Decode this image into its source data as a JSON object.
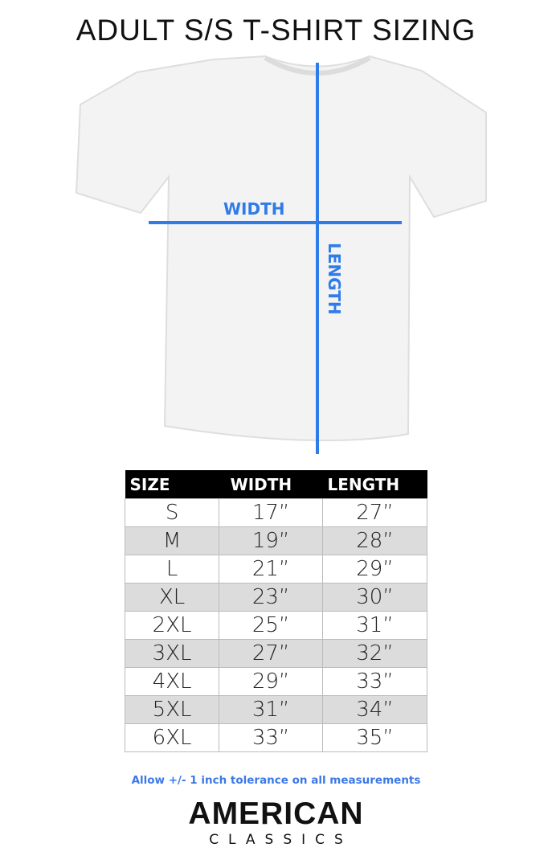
{
  "title": "ADULT S/S T-SHIRT SIZING",
  "diagram": {
    "width_label": "WIDTH",
    "length_label": "LENGTH",
    "accent_color": "#2f7be8"
  },
  "table": {
    "headers": [
      "SIZE",
      "WIDTH",
      "LENGTH"
    ],
    "rows": [
      [
        "S",
        "17”",
        "27”"
      ],
      [
        "M",
        "19”",
        "28”"
      ],
      [
        "L",
        "21”",
        "29”"
      ],
      [
        "XL",
        "23”",
        "30”"
      ],
      [
        "2XL",
        "25”",
        "31”"
      ],
      [
        "3XL",
        "27”",
        "32”"
      ],
      [
        "4XL",
        "29”",
        "33”"
      ],
      [
        "5XL",
        "31”",
        "34”"
      ],
      [
        "6XL",
        "33”",
        "35”"
      ]
    ]
  },
  "note": "Allow +/- 1 inch tolerance on all measurements",
  "brand": {
    "line1": "AMERICAN",
    "line2": "CLASSICS"
  }
}
